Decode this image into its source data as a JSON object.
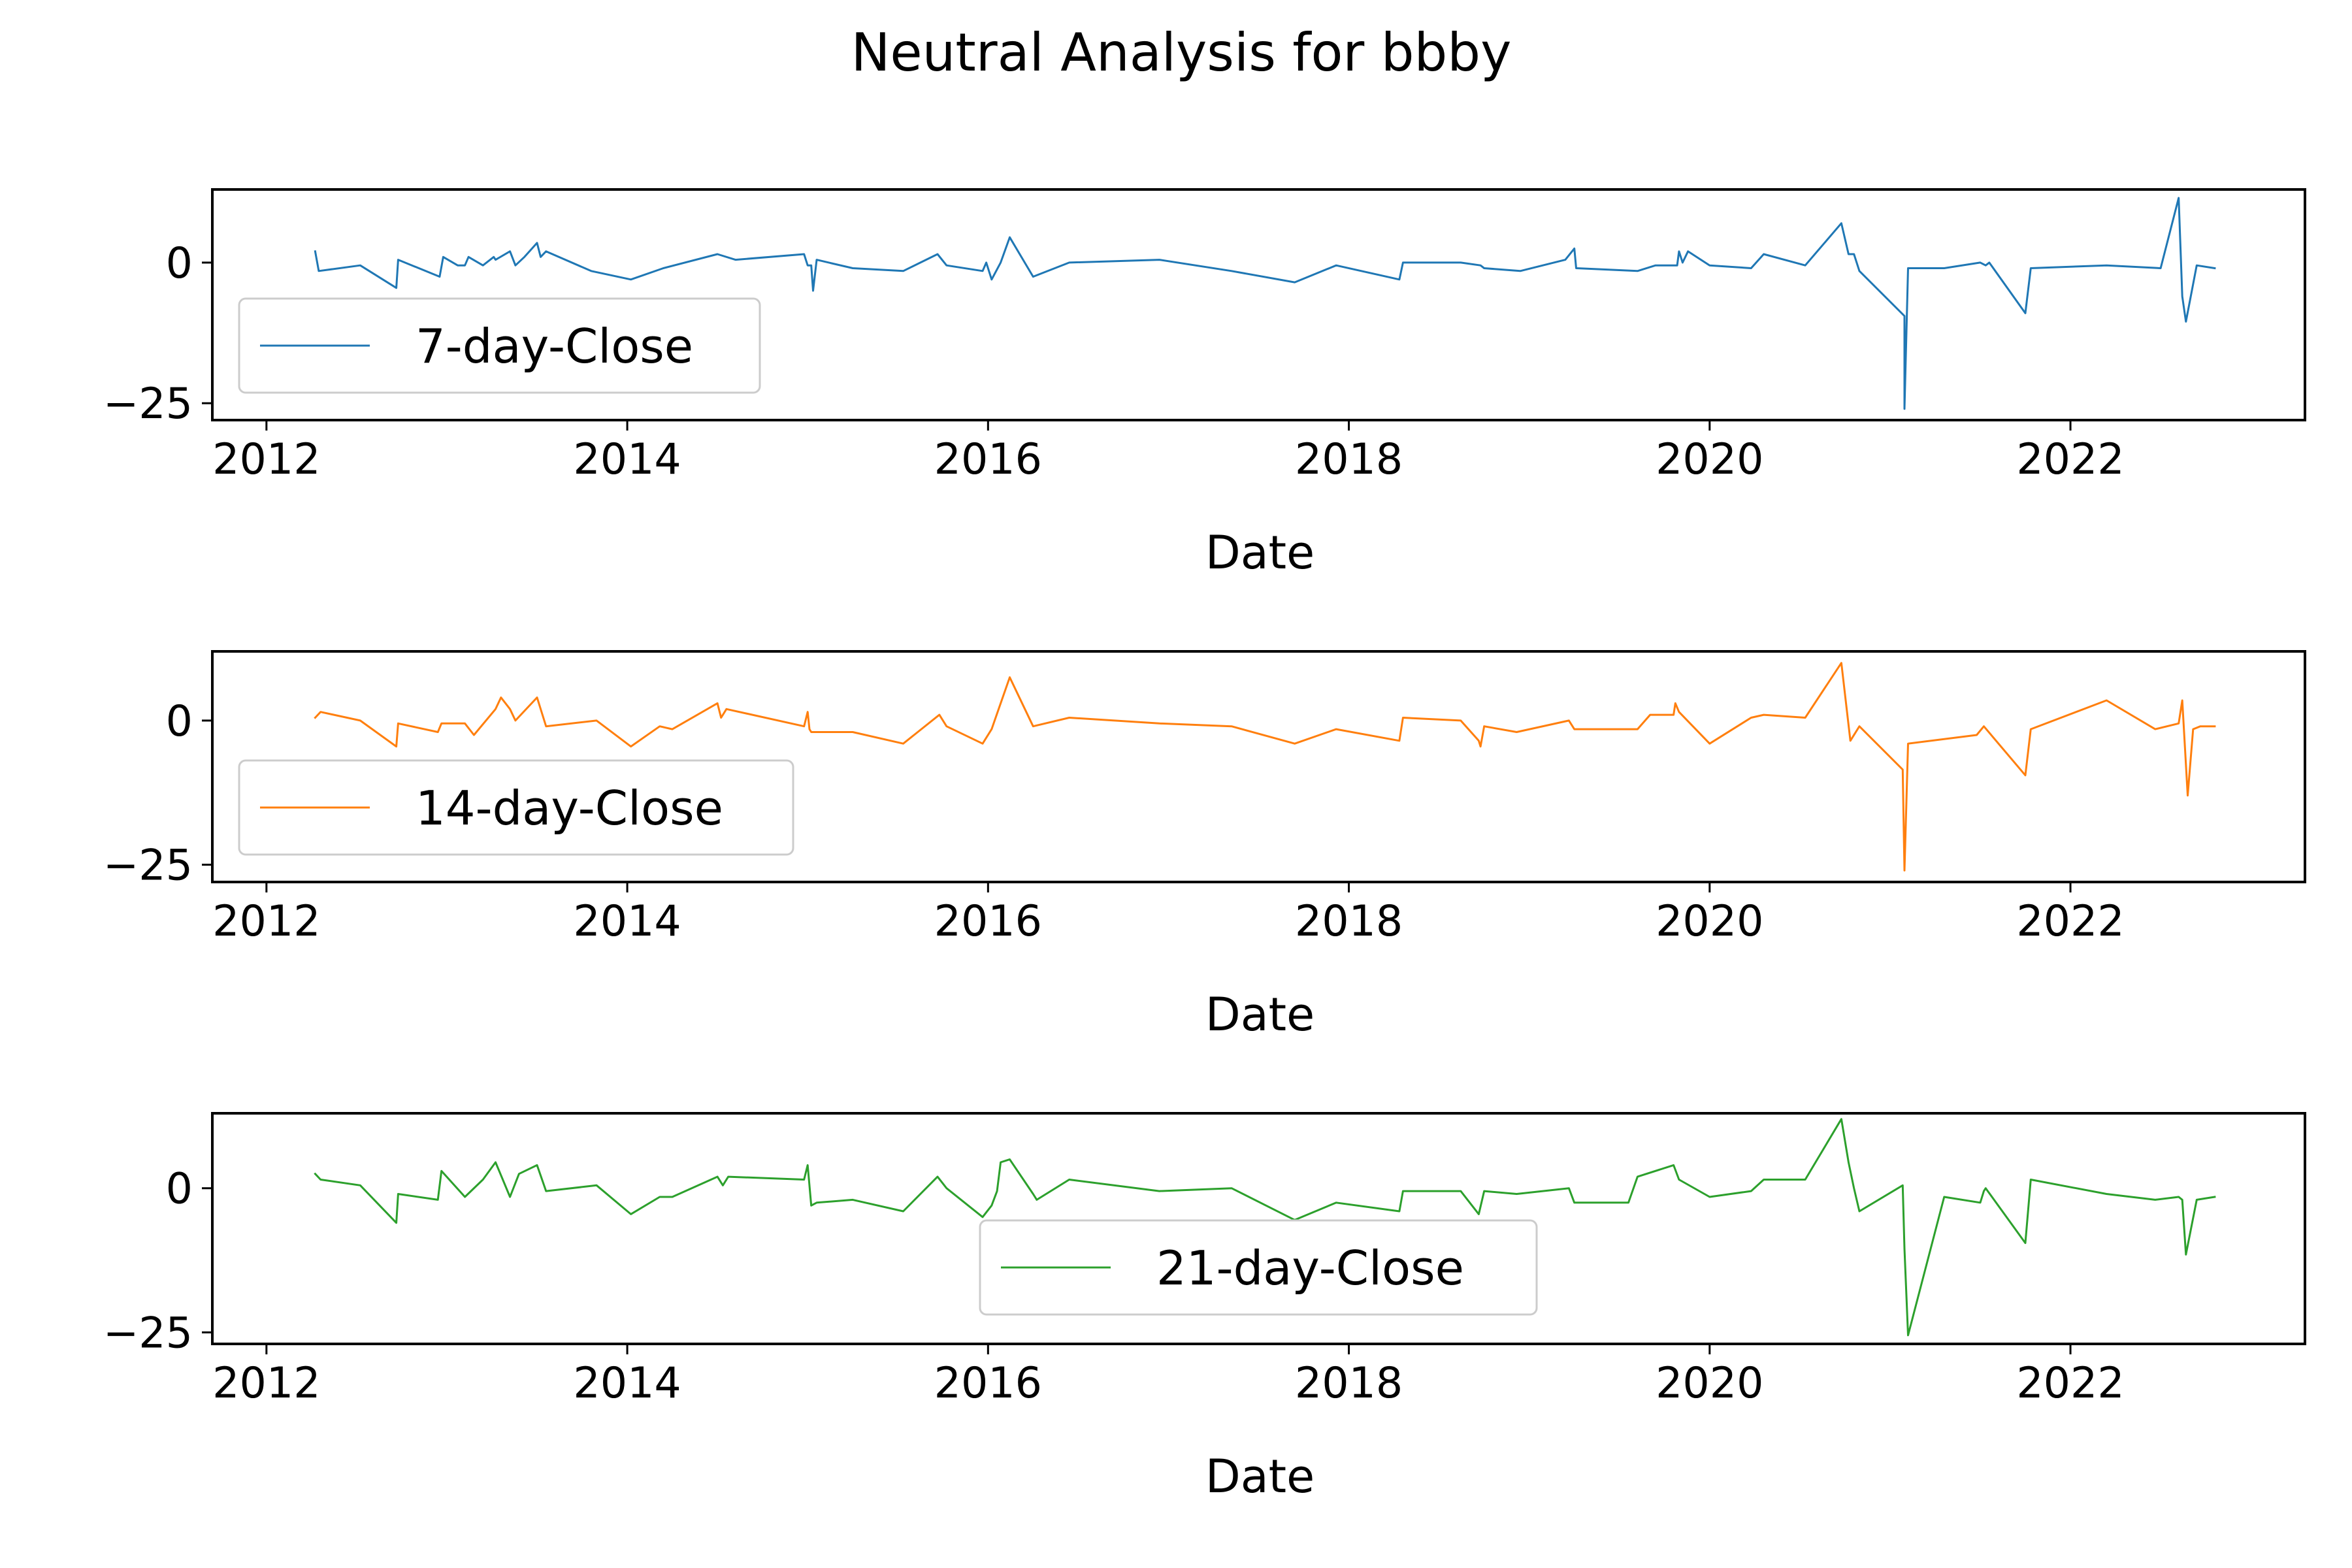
{
  "chart_data": {
    "type": "line",
    "title": "Neutral Analysis for bbby",
    "subplots": [
      {
        "xlabel": "Date",
        "ylabel": "",
        "legend_location": "lower left",
        "color": "#1f77b4",
        "xlim": [
          2011.7,
          2023.3
        ],
        "ylim": [
          -28,
          13
        ],
        "xticks": [
          2012,
          2014,
          2016,
          2018,
          2020,
          2022
        ],
        "yticks": [
          0,
          -25
        ],
        "series": [
          {
            "name": "7-day-Close",
            "x": [
              2012.27,
              2012.29,
              2012.52,
              2012.72,
              2012.73,
              2012.96,
              2012.98,
              2013.06,
              2013.1,
              2013.12,
              2013.2,
              2013.26,
              2013.27,
              2013.35,
              2013.38,
              2013.43,
              2013.5,
              2013.52,
              2013.55,
              2013.8,
              2014.02,
              2014.2,
              2014.5,
              2014.6,
              2014.98,
              2015.0,
              2015.02,
              2015.03,
              2015.05,
              2015.25,
              2015.53,
              2015.72,
              2015.77,
              2015.97,
              2015.99,
              2016.02,
              2016.07,
              2016.12,
              2016.25,
              2016.45,
              2016.95,
              2017.35,
              2017.7,
              2017.93,
              2018.28,
              2018.3,
              2018.62,
              2018.73,
              2018.75,
              2018.95,
              2019.2,
              2019.25,
              2019.26,
              2019.6,
              2019.7,
              2019.82,
              2019.83,
              2019.85,
              2019.88,
              2020.0,
              2020.23,
              2020.3,
              2020.53,
              2020.73,
              2020.77,
              2020.8,
              2020.83,
              2021.08,
              2021.08,
              2021.1,
              2021.3,
              2021.5,
              2021.53,
              2021.55,
              2021.75,
              2021.78,
              2022.2,
              2022.5,
              2022.6,
              2022.62,
              2022.64,
              2022.7,
              2022.8
            ],
            "y": [
              2,
              -1.5,
              -0.5,
              -4.5,
              0.5,
              -2.5,
              1,
              -0.5,
              -0.5,
              1,
              -0.5,
              1,
              0.5,
              2,
              -0.5,
              1,
              3.5,
              1,
              2,
              -1.5,
              -3,
              -1,
              1.5,
              0.5,
              1.5,
              -0.5,
              -0.5,
              -5,
              0.5,
              -1,
              -1.5,
              1.5,
              -0.5,
              -1.5,
              0,
              -3,
              0,
              4.5,
              -2.5,
              0,
              0.5,
              -1.5,
              -3.5,
              -0.5,
              -3,
              0,
              0,
              -0.5,
              -1,
              -1.5,
              0.5,
              2.5,
              -1,
              -1.5,
              -0.5,
              -0.5,
              2,
              0,
              2,
              -0.5,
              -1,
              1.5,
              -0.5,
              7,
              1.5,
              1.5,
              -1.5,
              -9.5,
              -26,
              -1,
              -1,
              0,
              -0.5,
              0,
              -9,
              -1,
              -0.5,
              -1,
              11.5,
              -6,
              -10.5,
              -0.5,
              -1
            ]
          }
        ]
      },
      {
        "xlabel": "Date",
        "ylabel": "",
        "legend_location": "lower left",
        "color": "#ff7f0e",
        "xlim": [
          2011.7,
          2023.3
        ],
        "ylim": [
          -28,
          12
        ],
        "xticks": [
          2012,
          2014,
          2016,
          2018,
          2020,
          2022
        ],
        "yticks": [
          0,
          -25
        ],
        "series": [
          {
            "name": "14-day-Close",
            "x": [
              2012.27,
              2012.3,
              2012.52,
              2012.72,
              2012.73,
              2012.95,
              2012.97,
              2013.1,
              2013.15,
              2013.27,
              2013.3,
              2013.35,
              2013.38,
              2013.5,
              2013.55,
              2013.83,
              2014.02,
              2014.18,
              2014.25,
              2014.5,
              2014.52,
              2014.55,
              2014.98,
              2015.0,
              2015.01,
              2015.02,
              2015.25,
              2015.53,
              2015.73,
              2015.77,
              2015.97,
              2016.02,
              2016.12,
              2016.25,
              2016.45,
              2016.95,
              2017.35,
              2017.7,
              2017.93,
              2018.28,
              2018.3,
              2018.62,
              2018.72,
              2018.73,
              2018.75,
              2018.93,
              2019.22,
              2019.25,
              2019.6,
              2019.67,
              2019.8,
              2019.81,
              2019.83,
              2020.0,
              2020.23,
              2020.3,
              2020.53,
              2020.73,
              2020.78,
              2020.83,
              2021.07,
              2021.08,
              2021.1,
              2021.48,
              2021.52,
              2021.75,
              2021.78,
              2022.2,
              2022.47,
              2022.6,
              2022.62,
              2022.65,
              2022.68,
              2022.72,
              2022.8
            ],
            "y": [
              0.5,
              1.5,
              0,
              -4.5,
              -0.5,
              -2,
              -0.5,
              -0.5,
              -2.5,
              2,
              4,
              2,
              0,
              4,
              -1,
              0,
              -4.5,
              -1,
              -1.5,
              3,
              0.5,
              2,
              -1,
              1.5,
              -1.5,
              -2,
              -2,
              -4,
              1,
              -1,
              -4,
              -1.5,
              7.5,
              -1,
              0.5,
              -0.5,
              -1,
              -4,
              -1.5,
              -3.5,
              0.5,
              0,
              -3.5,
              -4.5,
              -1,
              -2,
              0,
              -1.5,
              -1.5,
              1,
              1,
              3,
              1.5,
              -4,
              0.5,
              1,
              0.5,
              10,
              -3.5,
              -1,
              -8.5,
              -26,
              -4,
              -2.5,
              -1,
              -9.5,
              -1.5,
              3.5,
              -1.5,
              -0.5,
              3.5,
              -13,
              -1.5,
              -1,
              -1
            ]
          }
        ]
      },
      {
        "xlabel": "Date",
        "ylabel": "",
        "legend_location": "lower center",
        "color": "#2ca02c",
        "xlim": [
          2011.7,
          2023.3
        ],
        "ylim": [
          -27,
          13
        ],
        "xticks": [
          2012,
          2014,
          2016,
          2018,
          2020,
          2022
        ],
        "yticks": [
          0,
          -25
        ],
        "series": [
          {
            "name": "21-day-Close",
            "x": [
              2012.27,
              2012.3,
              2012.52,
              2012.72,
              2012.73,
              2012.95,
              2012.97,
              2013.1,
              2013.2,
              2013.27,
              2013.35,
              2013.4,
              2013.5,
              2013.55,
              2013.83,
              2014.02,
              2014.18,
              2014.25,
              2014.5,
              2014.53,
              2014.56,
              2014.98,
              2015.0,
              2015.02,
              2015.05,
              2015.25,
              2015.53,
              2015.72,
              2015.77,
              2015.97,
              2016.02,
              2016.05,
              2016.07,
              2016.12,
              2016.25,
              2016.27,
              2016.45,
              2016.95,
              2017.35,
              2017.7,
              2017.93,
              2018.28,
              2018.3,
              2018.62,
              2018.72,
              2018.75,
              2018.93,
              2019.22,
              2019.25,
              2019.55,
              2019.6,
              2019.8,
              2019.83,
              2020.0,
              2020.23,
              2020.3,
              2020.53,
              2020.73,
              2020.77,
              2020.8,
              2020.83,
              2021.07,
              2021.08,
              2021.1,
              2021.3,
              2021.5,
              2021.52,
              2021.53,
              2021.75,
              2021.78,
              2022.2,
              2022.47,
              2022.6,
              2022.62,
              2022.64,
              2022.7,
              2022.8
            ],
            "y": [
              2.5,
              1.5,
              0.5,
              -6,
              -1,
              -2,
              3,
              -1.5,
              1.5,
              4.5,
              -1.5,
              2.5,
              4,
              -0.5,
              0.5,
              -4.5,
              -1.5,
              -1.5,
              2,
              0.5,
              2,
              1.5,
              4,
              -3,
              -2.5,
              -2,
              -4,
              2,
              0,
              -5,
              -3,
              -0.5,
              4.5,
              5,
              -1,
              -2,
              1.5,
              -0.5,
              0,
              -5.5,
              -2.5,
              -4,
              -0.5,
              -0.5,
              -4.5,
              -0.5,
              -1,
              0,
              -2.5,
              -2.5,
              2,
              4,
              1.5,
              -1.5,
              -0.5,
              1.5,
              1.5,
              12,
              4.5,
              0,
              -4,
              0.5,
              -10.5,
              -25.5,
              -1.5,
              -2.5,
              -0.5,
              0,
              -9.5,
              1.5,
              -1,
              -2,
              -1.5,
              -2,
              -11.5,
              -2,
              -1.5
            ]
          }
        ]
      }
    ]
  }
}
